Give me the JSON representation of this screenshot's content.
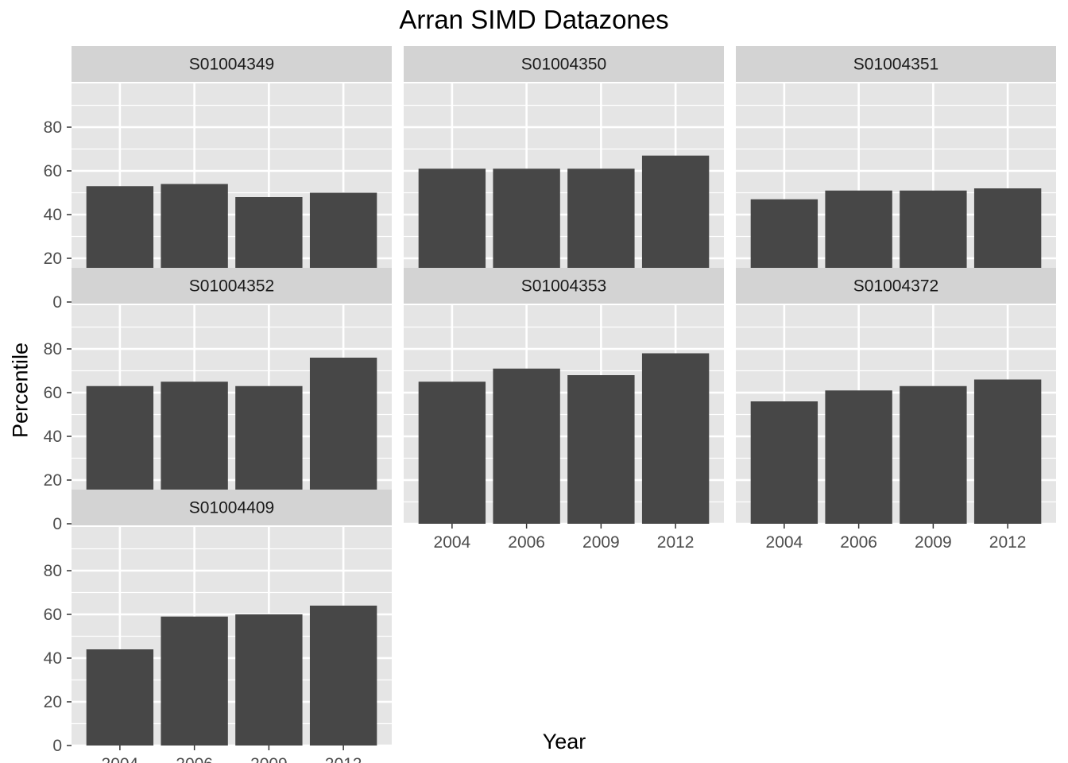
{
  "chart_data": {
    "type": "bar",
    "title": "Arran SIMD Datazones",
    "xlabel": "Year",
    "ylabel": "Percentile",
    "ylim": [
      0,
      100
    ],
    "y_ticks": [
      "0",
      "20",
      "40",
      "60",
      "80"
    ],
    "categories": [
      "2004",
      "2006",
      "2009",
      "2012"
    ],
    "grid": true,
    "colors": {
      "bar": "#474747",
      "panel_bg": "#e5e5e5",
      "strip_bg": "#d3d3d3",
      "grid": "#ffffff"
    },
    "series": [
      {
        "name": "S01004349",
        "values": [
          53,
          54,
          48,
          50
        ]
      },
      {
        "name": "S01004350",
        "values": [
          61,
          61,
          61,
          67
        ]
      },
      {
        "name": "S01004351",
        "values": [
          47,
          51,
          51,
          52
        ]
      },
      {
        "name": "S01004352",
        "values": [
          63,
          65,
          63,
          76
        ]
      },
      {
        "name": "S01004353",
        "values": [
          65,
          71,
          68,
          78
        ]
      },
      {
        "name": "S01004372",
        "values": [
          56,
          61,
          63,
          66
        ]
      },
      {
        "name": "S01004409",
        "values": [
          44,
          59,
          60,
          64
        ]
      }
    ]
  }
}
